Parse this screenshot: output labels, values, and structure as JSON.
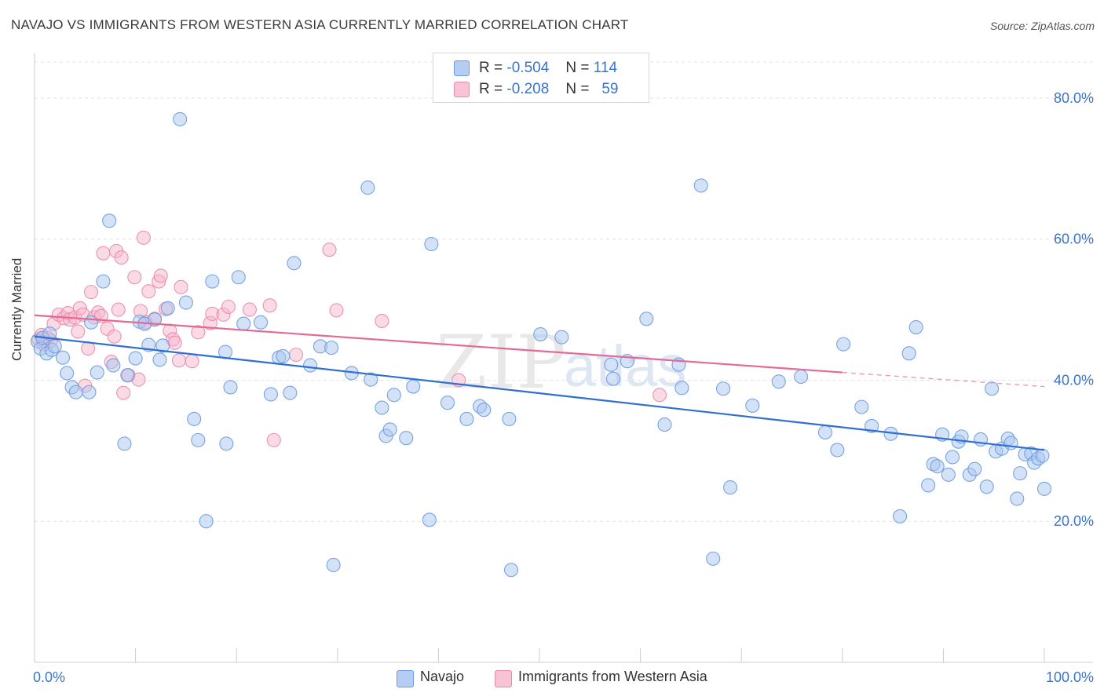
{
  "title": "NAVAJO VS IMMIGRANTS FROM WESTERN ASIA CURRENTLY MARRIED CORRELATION CHART",
  "source": "Source: ZipAtlas.com",
  "watermark": {
    "zip": "ZIP",
    "atlas": "atlas"
  },
  "legend_top": [
    {
      "r_label": "R =",
      "r_value": "-0.504",
      "n_label": "N =",
      "n_value": "114"
    },
    {
      "r_label": "R =",
      "r_value": "-0.208",
      "n_label": "N =",
      "n_value": "59"
    }
  ],
  "chart_data": {
    "type": "scatter",
    "ylabel": "Currently Married",
    "xlabel": "",
    "xlim": [
      0,
      100
    ],
    "ylim": [
      0,
      85
    ],
    "grid": true,
    "y_ticks": [
      20,
      40,
      60,
      80
    ],
    "y_tick_labels": [
      "20.0%",
      "40.0%",
      "60.0%",
      "80.0%"
    ],
    "x_tick_labels": [
      "0.0%",
      "100.0%"
    ],
    "legend_position": "bottom-center",
    "series": [
      {
        "name": "Navajo",
        "color": "#6a9ae0",
        "fill": "#a9c6ef",
        "trend": {
          "x": [
            0,
            100
          ],
          "y": [
            46.2,
            30.1
          ]
        },
        "points": [
          [
            0.3,
            45.5
          ],
          [
            0.6,
            44.5
          ],
          [
            0.8,
            46.0
          ],
          [
            1.2,
            43.8
          ],
          [
            1.5,
            46.6
          ],
          [
            1.7,
            44.3
          ],
          [
            2.0,
            44.8
          ],
          [
            2.8,
            43.2
          ],
          [
            3.2,
            41.0
          ],
          [
            3.7,
            39.0
          ],
          [
            4.1,
            38.3
          ],
          [
            5.4,
            38.3
          ],
          [
            5.6,
            48.2
          ],
          [
            6.2,
            41.1
          ],
          [
            6.8,
            54.0
          ],
          [
            7.4,
            62.6
          ],
          [
            7.8,
            42.1
          ],
          [
            8.9,
            31.0
          ],
          [
            9.2,
            40.7
          ],
          [
            10.0,
            43.1
          ],
          [
            10.4,
            48.3
          ],
          [
            10.9,
            48.0
          ],
          [
            11.3,
            45.0
          ],
          [
            11.9,
            48.6
          ],
          [
            12.4,
            42.9
          ],
          [
            12.7,
            44.9
          ],
          [
            13.2,
            50.2
          ],
          [
            14.4,
            77.0
          ],
          [
            15.0,
            51.0
          ],
          [
            15.8,
            34.5
          ],
          [
            16.2,
            31.5
          ],
          [
            17.0,
            20.0
          ],
          [
            17.6,
            54.0
          ],
          [
            18.9,
            44.0
          ],
          [
            19.0,
            31.0
          ],
          [
            19.4,
            39.0
          ],
          [
            20.2,
            54.6
          ],
          [
            20.7,
            48.0
          ],
          [
            22.4,
            48.2
          ],
          [
            23.4,
            38.0
          ],
          [
            24.2,
            43.2
          ],
          [
            24.6,
            43.4
          ],
          [
            25.3,
            38.2
          ],
          [
            25.7,
            56.6
          ],
          [
            27.3,
            42.1
          ],
          [
            28.3,
            44.8
          ],
          [
            29.4,
            44.6
          ],
          [
            29.6,
            13.8
          ],
          [
            31.4,
            41.0
          ],
          [
            33.0,
            67.3
          ],
          [
            33.3,
            40.1
          ],
          [
            34.4,
            36.1
          ],
          [
            34.8,
            32.1
          ],
          [
            35.2,
            33.0
          ],
          [
            35.6,
            37.9
          ],
          [
            36.8,
            31.8
          ],
          [
            37.5,
            39.1
          ],
          [
            39.3,
            59.3
          ],
          [
            39.1,
            20.2
          ],
          [
            40.9,
            36.8
          ],
          [
            42.8,
            34.5
          ],
          [
            44.1,
            36.3
          ],
          [
            44.5,
            35.8
          ],
          [
            47.0,
            34.5
          ],
          [
            47.2,
            13.1
          ],
          [
            50.1,
            46.5
          ],
          [
            52.2,
            46.1
          ],
          [
            57.1,
            42.2
          ],
          [
            57.3,
            40.2
          ],
          [
            58.7,
            42.7
          ],
          [
            60.6,
            48.7
          ],
          [
            62.4,
            33.7
          ],
          [
            63.8,
            42.2
          ],
          [
            64.1,
            38.9
          ],
          [
            66.0,
            67.6
          ],
          [
            67.2,
            14.7
          ],
          [
            68.2,
            38.8
          ],
          [
            68.9,
            24.8
          ],
          [
            71.1,
            36.4
          ],
          [
            73.7,
            39.8
          ],
          [
            75.9,
            40.5
          ],
          [
            78.3,
            32.6
          ],
          [
            79.5,
            30.1
          ],
          [
            80.1,
            45.1
          ],
          [
            81.9,
            36.2
          ],
          [
            82.9,
            33.5
          ],
          [
            84.8,
            32.4
          ],
          [
            85.7,
            20.7
          ],
          [
            86.6,
            43.8
          ],
          [
            87.3,
            47.5
          ],
          [
            88.5,
            25.1
          ],
          [
            89.0,
            28.1
          ],
          [
            89.4,
            27.8
          ],
          [
            89.9,
            32.3
          ],
          [
            90.5,
            26.6
          ],
          [
            90.9,
            29.1
          ],
          [
            91.5,
            31.3
          ],
          [
            91.8,
            32.0
          ],
          [
            92.6,
            26.6
          ],
          [
            93.1,
            27.4
          ],
          [
            93.7,
            31.6
          ],
          [
            94.3,
            24.9
          ],
          [
            94.8,
            38.8
          ],
          [
            95.2,
            29.9
          ],
          [
            95.8,
            30.3
          ],
          [
            96.4,
            31.7
          ],
          [
            96.7,
            31.1
          ],
          [
            97.3,
            23.2
          ],
          [
            97.6,
            26.8
          ],
          [
            98.1,
            29.5
          ],
          [
            98.7,
            29.6
          ],
          [
            99.0,
            28.3
          ],
          [
            99.4,
            28.9
          ],
          [
            99.8,
            29.3
          ],
          [
            100.0,
            24.6
          ]
        ]
      },
      {
        "name": "Immigrants from Western Asia",
        "color": "#e98aaa",
        "fill": "#f5b6cb",
        "trend": {
          "x": [
            0,
            80
          ],
          "y": [
            49.2,
            41.1
          ],
          "dashed_to": [
            100,
            39.1
          ]
        },
        "points": [
          [
            0.4,
            45.8
          ],
          [
            0.7,
            46.4
          ],
          [
            0.9,
            45.1
          ],
          [
            1.3,
            46.0
          ],
          [
            1.6,
            45.6
          ],
          [
            1.9,
            48.0
          ],
          [
            2.4,
            49.3
          ],
          [
            2.9,
            48.8
          ],
          [
            3.3,
            49.5
          ],
          [
            3.5,
            48.6
          ],
          [
            4.0,
            48.9
          ],
          [
            4.3,
            46.9
          ],
          [
            4.5,
            50.2
          ],
          [
            4.8,
            49.3
          ],
          [
            5.0,
            39.2
          ],
          [
            5.3,
            44.5
          ],
          [
            5.6,
            52.5
          ],
          [
            5.9,
            48.9
          ],
          [
            6.3,
            49.6
          ],
          [
            6.6,
            49.1
          ],
          [
            6.8,
            58.0
          ],
          [
            7.2,
            47.3
          ],
          [
            7.6,
            42.6
          ],
          [
            7.9,
            46.2
          ],
          [
            8.1,
            58.3
          ],
          [
            8.3,
            50.0
          ],
          [
            8.6,
            57.4
          ],
          [
            8.8,
            38.2
          ],
          [
            9.3,
            40.7
          ],
          [
            9.9,
            54.6
          ],
          [
            10.3,
            40.1
          ],
          [
            10.5,
            49.8
          ],
          [
            10.8,
            60.2
          ],
          [
            11.0,
            48.2
          ],
          [
            11.3,
            52.6
          ],
          [
            11.9,
            48.7
          ],
          [
            12.3,
            54.0
          ],
          [
            12.5,
            54.8
          ],
          [
            13.0,
            50.1
          ],
          [
            13.4,
            47.0
          ],
          [
            13.7,
            45.8
          ],
          [
            13.9,
            45.3
          ],
          [
            14.3,
            42.8
          ],
          [
            14.5,
            53.2
          ],
          [
            15.6,
            42.7
          ],
          [
            16.2,
            46.8
          ],
          [
            17.4,
            48.1
          ],
          [
            17.6,
            49.4
          ],
          [
            18.7,
            49.3
          ],
          [
            19.2,
            50.4
          ],
          [
            21.3,
            50.0
          ],
          [
            23.3,
            50.6
          ],
          [
            23.7,
            31.5
          ],
          [
            25.9,
            43.6
          ],
          [
            29.2,
            58.5
          ],
          [
            29.9,
            49.9
          ],
          [
            34.4,
            48.4
          ],
          [
            42.0,
            40.0
          ],
          [
            61.9,
            37.9
          ]
        ]
      }
    ]
  }
}
